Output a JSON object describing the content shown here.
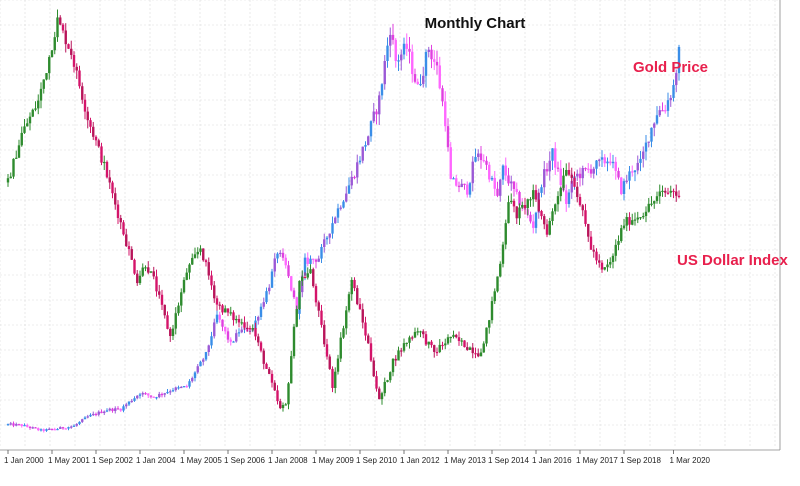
{
  "chart_data": {
    "type": "line",
    "title": "Monthly Chart",
    "xlabel": "",
    "ylabel": "",
    "grid": true,
    "x_ticks": [
      "1 Jan 2000",
      "1 May 2001",
      "1 Sep 2002",
      "1 Jan 2004",
      "1 May 2005",
      "1 Sep 2006",
      "1 Jan 2008",
      "1 May 2009",
      "1 Sep 2010",
      "1 Jan 2012",
      "1 May 2013",
      "1 Sep 2014",
      "1 Jan 2016",
      "1 May 2017",
      "1 Sep 2018",
      "1 Mar 2020"
    ],
    "series": [
      {
        "name": "Gold Price",
        "color": "#e8204d",
        "up_colors": [
          "#3a8ee8",
          "#9b59d6"
        ],
        "down_colors": [
          "#e040e0",
          "#ff66ff"
        ],
        "points": [
          [
            "2000-01",
            288
          ],
          [
            "2000-06",
            285
          ],
          [
            "2001-01",
            265
          ],
          [
            "2001-06",
            270
          ],
          [
            "2002-01",
            282
          ],
          [
            "2002-06",
            318
          ],
          [
            "2003-01",
            345
          ],
          [
            "2003-06",
            348
          ],
          [
            "2004-01",
            410
          ],
          [
            "2004-06",
            395
          ],
          [
            "2005-01",
            425
          ],
          [
            "2005-06",
            435
          ],
          [
            "2006-01",
            560
          ],
          [
            "2006-05",
            710
          ],
          [
            "2006-10",
            600
          ],
          [
            "2007-01",
            650
          ],
          [
            "2007-06",
            660
          ],
          [
            "2007-12",
            830
          ],
          [
            "2008-03",
            960
          ],
          [
            "2008-06",
            900
          ],
          [
            "2008-10",
            730
          ],
          [
            "2009-01",
            920
          ],
          [
            "2009-06",
            935
          ],
          [
            "2009-12",
            1100
          ],
          [
            "2010-06",
            1240
          ],
          [
            "2010-12",
            1410
          ],
          [
            "2011-04",
            1550
          ],
          [
            "2011-08",
            1830
          ],
          [
            "2011-10",
            1700
          ],
          [
            "2012-02",
            1750
          ],
          [
            "2012-06",
            1590
          ],
          [
            "2012-10",
            1750
          ],
          [
            "2013-01",
            1670
          ],
          [
            "2013-04",
            1470
          ],
          [
            "2013-06",
            1230
          ],
          [
            "2013-12",
            1200
          ],
          [
            "2014-03",
            1330
          ],
          [
            "2014-06",
            1320
          ],
          [
            "2014-11",
            1170
          ],
          [
            "2015-01",
            1280
          ],
          [
            "2015-06",
            1170
          ],
          [
            "2015-12",
            1060
          ],
          [
            "2016-03",
            1230
          ],
          [
            "2016-07",
            1340
          ],
          [
            "2016-12",
            1150
          ],
          [
            "2017-03",
            1250
          ],
          [
            "2017-09",
            1280
          ],
          [
            "2017-12",
            1300
          ],
          [
            "2018-04",
            1320
          ],
          [
            "2018-08",
            1200
          ],
          [
            "2018-12",
            1280
          ],
          [
            "2019-03",
            1300
          ],
          [
            "2019-06",
            1410
          ],
          [
            "2019-09",
            1500
          ],
          [
            "2019-12",
            1520
          ],
          [
            "2020-03",
            1600
          ],
          [
            "2020-05",
            1730
          ]
        ]
      },
      {
        "name": "US Dollar Index",
        "color": "#e8204d",
        "up_colors": [
          "#2e8b2e"
        ],
        "down_colors": [
          "#d4146a",
          "#b8145a"
        ],
        "points": [
          [
            "2000-01",
            100
          ],
          [
            "2000-06",
            106
          ],
          [
            "2000-12",
            110
          ],
          [
            "2001-03",
            114
          ],
          [
            "2001-07",
            120
          ],
          [
            "2001-12",
            116
          ],
          [
            "2002-06",
            108
          ],
          [
            "2002-12",
            102
          ],
          [
            "2003-06",
            95
          ],
          [
            "2003-12",
            88
          ],
          [
            "2004-03",
            90
          ],
          [
            "2004-06",
            88
          ],
          [
            "2004-12",
            81
          ],
          [
            "2005-06",
            89
          ],
          [
            "2005-11",
            92
          ],
          [
            "2006-05",
            85
          ],
          [
            "2006-12",
            83
          ],
          [
            "2007-06",
            82
          ],
          [
            "2007-12",
            76
          ],
          [
            "2008-04",
            72
          ],
          [
            "2008-06",
            72.5
          ],
          [
            "2008-11",
            88
          ],
          [
            "2009-03",
            89
          ],
          [
            "2009-11",
            75
          ],
          [
            "2010-06",
            88
          ],
          [
            "2010-12",
            80
          ],
          [
            "2011-04",
            73
          ],
          [
            "2011-09",
            78
          ],
          [
            "2012-01",
            80
          ],
          [
            "2012-06",
            82
          ],
          [
            "2012-12",
            79
          ],
          [
            "2013-06",
            81
          ],
          [
            "2014-04",
            79
          ],
          [
            "2014-06",
            80
          ],
          [
            "2014-12",
            90
          ],
          [
            "2015-03",
            98
          ],
          [
            "2015-06",
            96
          ],
          [
            "2015-12",
            98.5
          ],
          [
            "2016-05",
            94
          ],
          [
            "2016-12",
            102
          ],
          [
            "2017-03",
            100
          ],
          [
            "2017-09",
            92
          ],
          [
            "2018-01",
            89
          ],
          [
            "2018-04",
            90
          ],
          [
            "2018-09",
            95
          ],
          [
            "2019-03",
            96
          ],
          [
            "2019-06",
            97
          ],
          [
            "2019-10",
            98.5
          ],
          [
            "2020-03",
            99
          ],
          [
            "2020-05",
            98
          ]
        ]
      }
    ]
  }
}
